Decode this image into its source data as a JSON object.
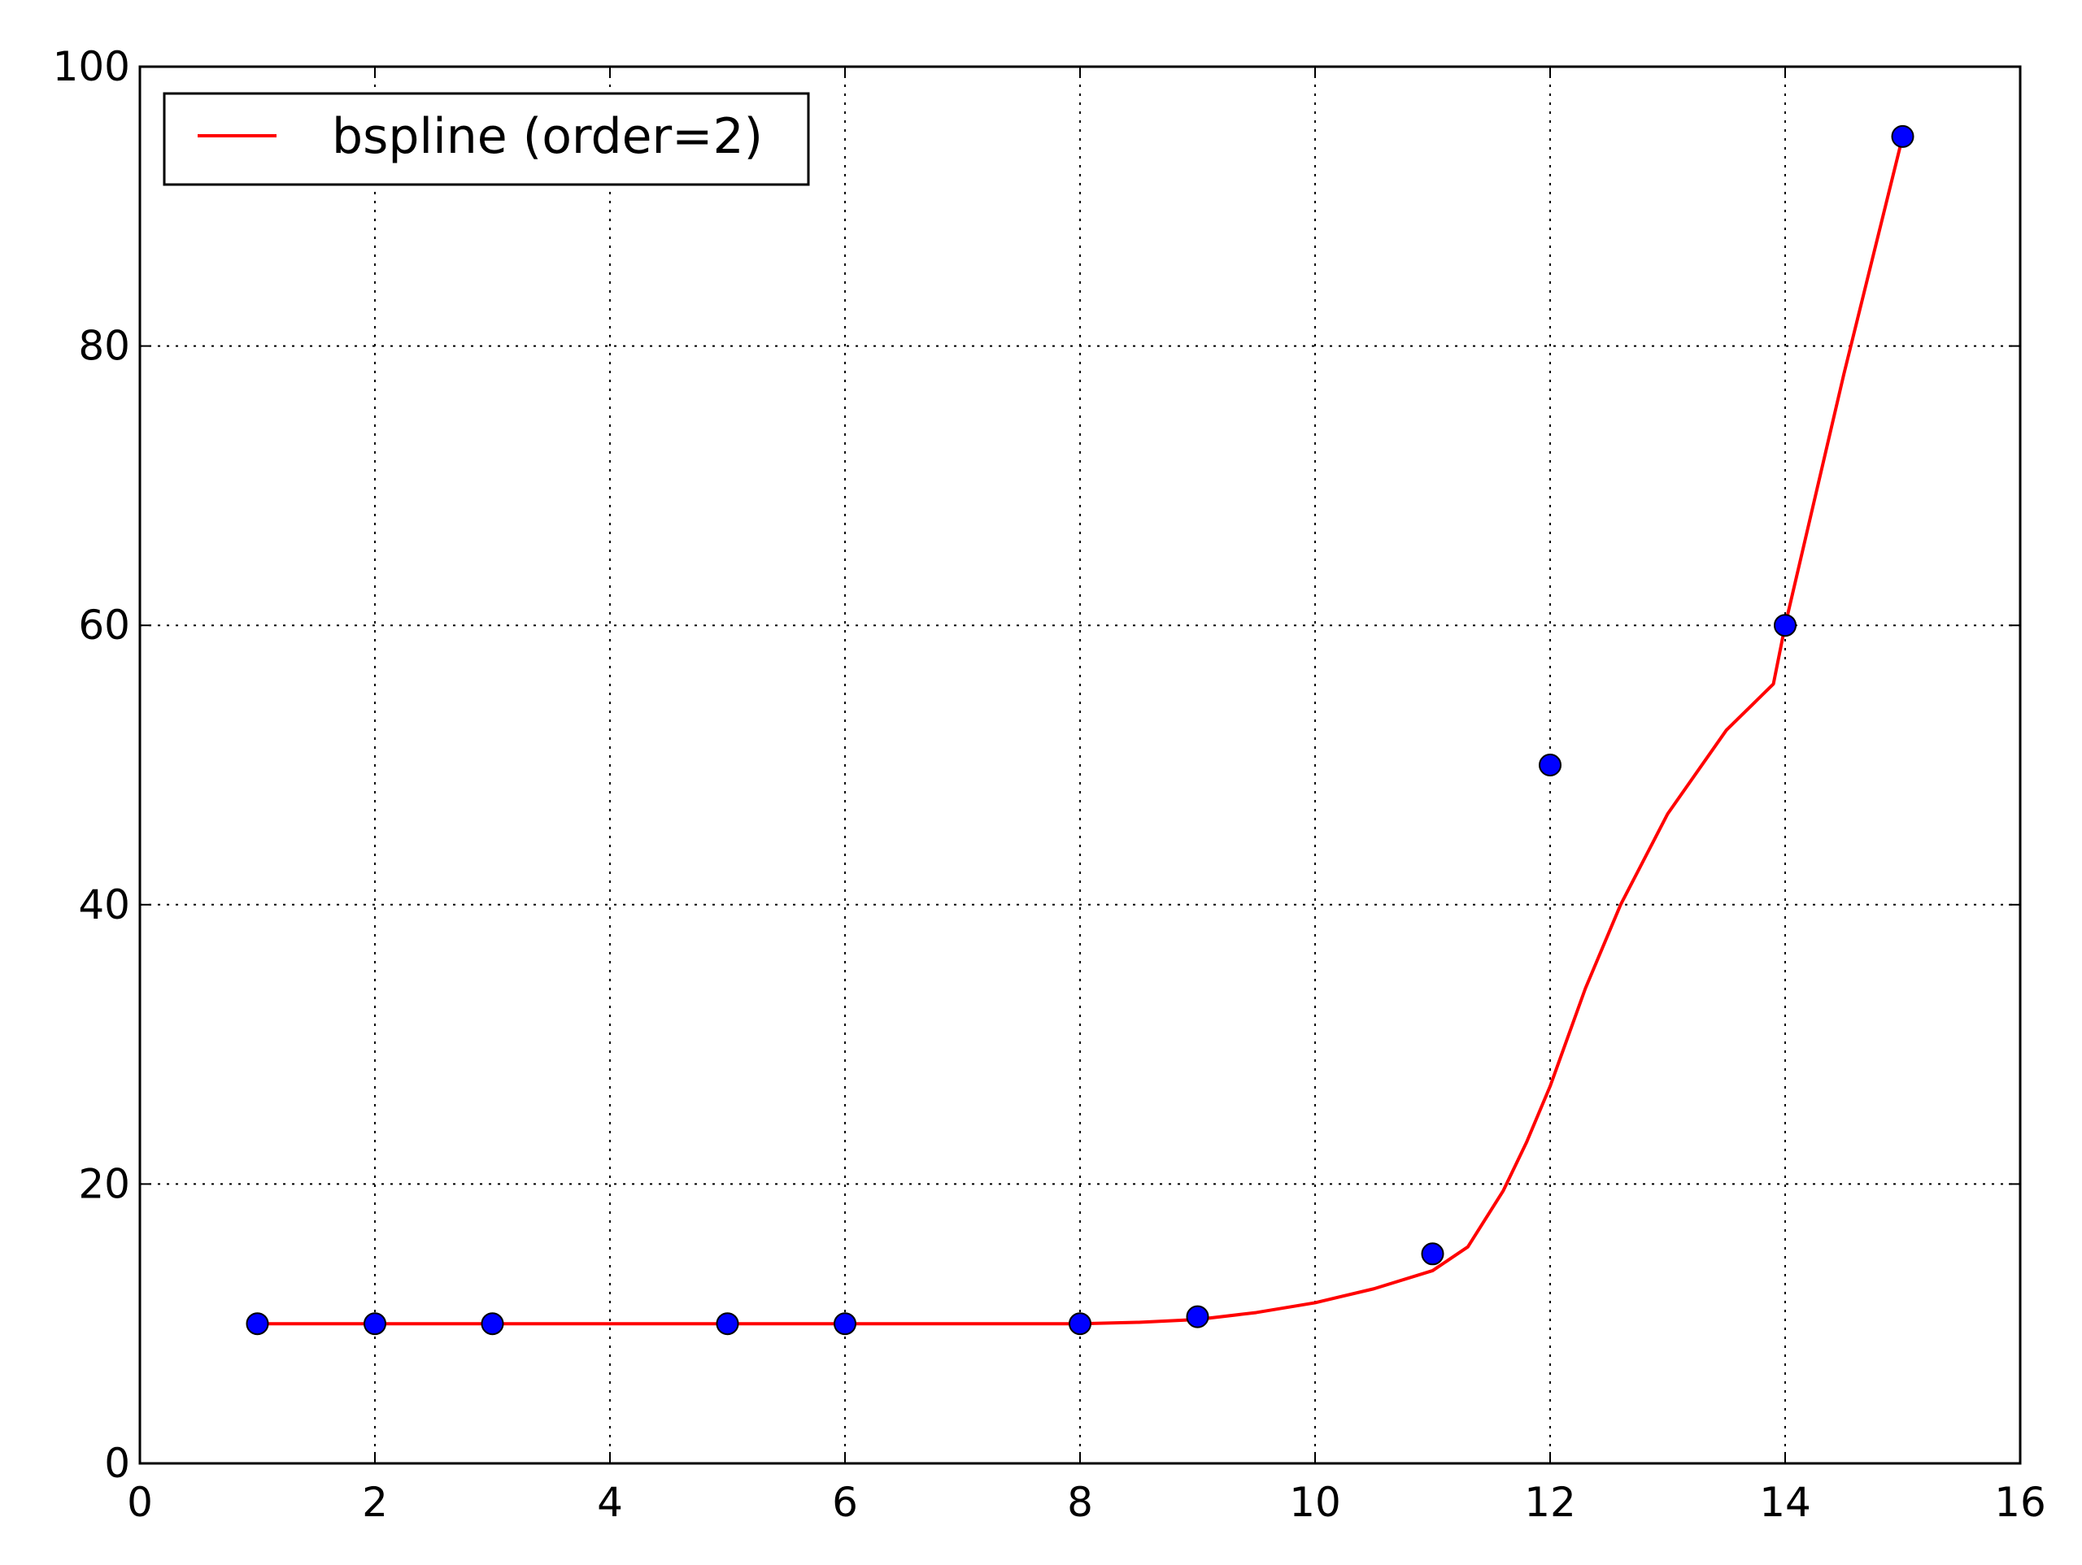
{
  "chart_data": {
    "type": "line",
    "title": "",
    "xlabel": "",
    "ylabel": "",
    "xlim": [
      0,
      16
    ],
    "ylim": [
      0,
      100
    ],
    "xticks": [
      "0",
      "2",
      "4",
      "6",
      "8",
      "10",
      "12",
      "14",
      "16"
    ],
    "yticks": [
      "0",
      "20",
      "40",
      "60",
      "80",
      "100"
    ],
    "grid": true,
    "legend_position": "top-left",
    "series": [
      {
        "name": "bspline (order=2)",
        "kind": "line",
        "color": "#ff0000",
        "x": [
          1,
          2,
          3,
          4,
          5,
          6,
          7,
          8,
          8.5,
          9,
          9.5,
          10,
          10.5,
          11,
          11.3,
          11.6,
          11.8,
          12,
          12.3,
          12.6,
          13,
          13.5,
          13.9,
          14,
          14.5,
          15
        ],
        "y": [
          10,
          10,
          10,
          10,
          10,
          10,
          10,
          10,
          10.1,
          10.3,
          10.8,
          11.5,
          12.5,
          13.8,
          15.5,
          19.5,
          23,
          27,
          34,
          40,
          46.5,
          52.5,
          55.8,
          60,
          78,
          95
        ]
      },
      {
        "name": "",
        "kind": "scatter",
        "color": "#0000ff",
        "x": [
          1,
          2,
          3,
          5,
          6,
          8,
          9,
          11,
          12,
          14,
          15
        ],
        "y": [
          10,
          10,
          10,
          10,
          10,
          10,
          10.5,
          15,
          50,
          60,
          95
        ]
      }
    ]
  }
}
